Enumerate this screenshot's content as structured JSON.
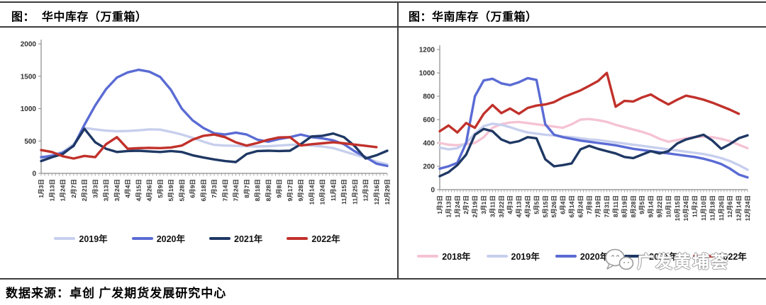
{
  "page": {
    "panels": [
      {
        "title": "图：  华中库存（万重箱）"
      },
      {
        "title": "图：华南库存（万重箱）"
      }
    ],
    "source_note": "数据来源：卓创 广发期货发展研究中心",
    "watermark": {
      "icon": "wechat-icon",
      "label": "广发黄埔荟"
    }
  },
  "chart_data": [
    {
      "type": "line",
      "title": "华中库存（万重箱）",
      "ylim": [
        0,
        2000
      ],
      "yticks": [
        0,
        500,
        1000,
        1500,
        2000
      ],
      "grid": false,
      "legend_position": "bottom",
      "categories": [
        "1月3日",
        "1月13日",
        "1月24日",
        "2月7日",
        "2月21日",
        "3月3日",
        "3月13日",
        "3月24日",
        "4月4日",
        "4月15日",
        "4月26日",
        "5月9日",
        "5月19日",
        "5月28日",
        "6月9日",
        "6月18日",
        "7月3日",
        "7月14日",
        "7月24日",
        "8月7日",
        "8月18日",
        "8月28日",
        "9月8日",
        "9月17日",
        "9月28日",
        "10月14日",
        "10月24日",
        "11月4日",
        "11月15日",
        "11月25日",
        "12月3日",
        "12月16日",
        "12月29日"
      ],
      "series": [
        {
          "name": "2019年",
          "color": "#c7cfee",
          "values": [
            230,
            290,
            330,
            450,
            700,
            680,
            660,
            650,
            655,
            665,
            680,
            675,
            640,
            600,
            550,
            490,
            440,
            430,
            425,
            420,
            415,
            420,
            430,
            440,
            445,
            430,
            415,
            390,
            340,
            290,
            240,
            180,
            140
          ]
        },
        {
          "name": "2020年",
          "color": "#5a6bd4",
          "values": [
            250,
            270,
            320,
            420,
            750,
            1050,
            1300,
            1480,
            1560,
            1600,
            1570,
            1490,
            1290,
            1000,
            820,
            700,
            620,
            600,
            630,
            600,
            520,
            490,
            530,
            560,
            600,
            560,
            540,
            510,
            450,
            340,
            250,
            150,
            115
          ]
        },
        {
          "name": "2021年",
          "color": "#1f3864",
          "values": [
            190,
            250,
            300,
            430,
            690,
            480,
            380,
            330,
            345,
            350,
            340,
            330,
            345,
            330,
            280,
            245,
            215,
            190,
            175,
            300,
            345,
            350,
            345,
            350,
            450,
            570,
            580,
            615,
            560,
            420,
            230,
            280,
            350
          ]
        },
        {
          "name": "2022年",
          "color": "#c1312b",
          "values": [
            360,
            330,
            265,
            230,
            270,
            250,
            450,
            560,
            380,
            390,
            395,
            390,
            400,
            430,
            520,
            580,
            600,
            560,
            480,
            430,
            470,
            520,
            555,
            560,
            430,
            450,
            465,
            480,
            465,
            445,
            425,
            405,
            null
          ]
        }
      ]
    },
    {
      "type": "line",
      "title": "华南库存（万重箱）",
      "ylim": [
        0,
        1200
      ],
      "yticks": [
        0,
        200,
        400,
        600,
        800,
        1000,
        1200
      ],
      "grid": false,
      "legend_position": "bottom",
      "categories": [
        "1月3日",
        "1月13日",
        "1月24日",
        "2月7日",
        "2月19日",
        "3月1日",
        "3月11日",
        "3月22日",
        "4月3日",
        "4月13日",
        "4月24日",
        "5月5日",
        "5月15日",
        "5月26日",
        "6月4日",
        "6月14日",
        "6月24日",
        "7月8日",
        "7月19日",
        "7月31日",
        "8月11日",
        "8月19日",
        "8月28日",
        "9月5日",
        "9月14日",
        "9月22日",
        "10月1日",
        "10月15日",
        "10月24日",
        "11月2日",
        "11月10日",
        "11月18日",
        "11月26日",
        "12月6日",
        "12月14日",
        "12月24日"
      ],
      "series": [
        {
          "name": "2018年",
          "color": "#f5c3d4",
          "values": [
            400,
            385,
            380,
            390,
            400,
            450,
            530,
            560,
            575,
            580,
            570,
            560,
            550,
            540,
            530,
            560,
            600,
            605,
            595,
            580,
            555,
            535,
            515,
            495,
            470,
            435,
            410,
            425,
            440,
            450,
            455,
            450,
            435,
            415,
            385,
            355
          ]
        },
        {
          "name": "2019年",
          "color": "#c7cfee",
          "values": [
            360,
            345,
            355,
            400,
            480,
            545,
            565,
            555,
            535,
            510,
            490,
            480,
            470,
            465,
            455,
            450,
            440,
            430,
            425,
            415,
            405,
            395,
            385,
            375,
            365,
            355,
            345,
            335,
            325,
            315,
            305,
            290,
            270,
            245,
            210,
            170
          ]
        },
        {
          "name": "2020年",
          "color": "#5a6bd4",
          "values": [
            180,
            200,
            230,
            400,
            800,
            935,
            950,
            910,
            895,
            920,
            955,
            940,
            560,
            470,
            450,
            435,
            420,
            410,
            400,
            390,
            380,
            365,
            350,
            340,
            330,
            320,
            310,
            300,
            290,
            280,
            265,
            245,
            220,
            180,
            130,
            105
          ]
        },
        {
          "name": "2021年",
          "color": "#1f3864",
          "values": [
            115,
            150,
            210,
            300,
            470,
            520,
            500,
            430,
            400,
            415,
            450,
            440,
            260,
            200,
            210,
            225,
            345,
            375,
            350,
            330,
            310,
            280,
            270,
            300,
            330,
            310,
            330,
            395,
            430,
            450,
            470,
            420,
            350,
            390,
            440,
            465
          ]
        },
        {
          "name": "2022年",
          "color": "#c1312b",
          "values": [
            500,
            550,
            490,
            570,
            530,
            650,
            725,
            655,
            695,
            650,
            700,
            720,
            730,
            750,
            790,
            820,
            850,
            890,
            930,
            1000,
            710,
            760,
            755,
            790,
            815,
            770,
            730,
            770,
            805,
            790,
            770,
            745,
            715,
            685,
            650,
            null
          ]
        }
      ]
    }
  ]
}
